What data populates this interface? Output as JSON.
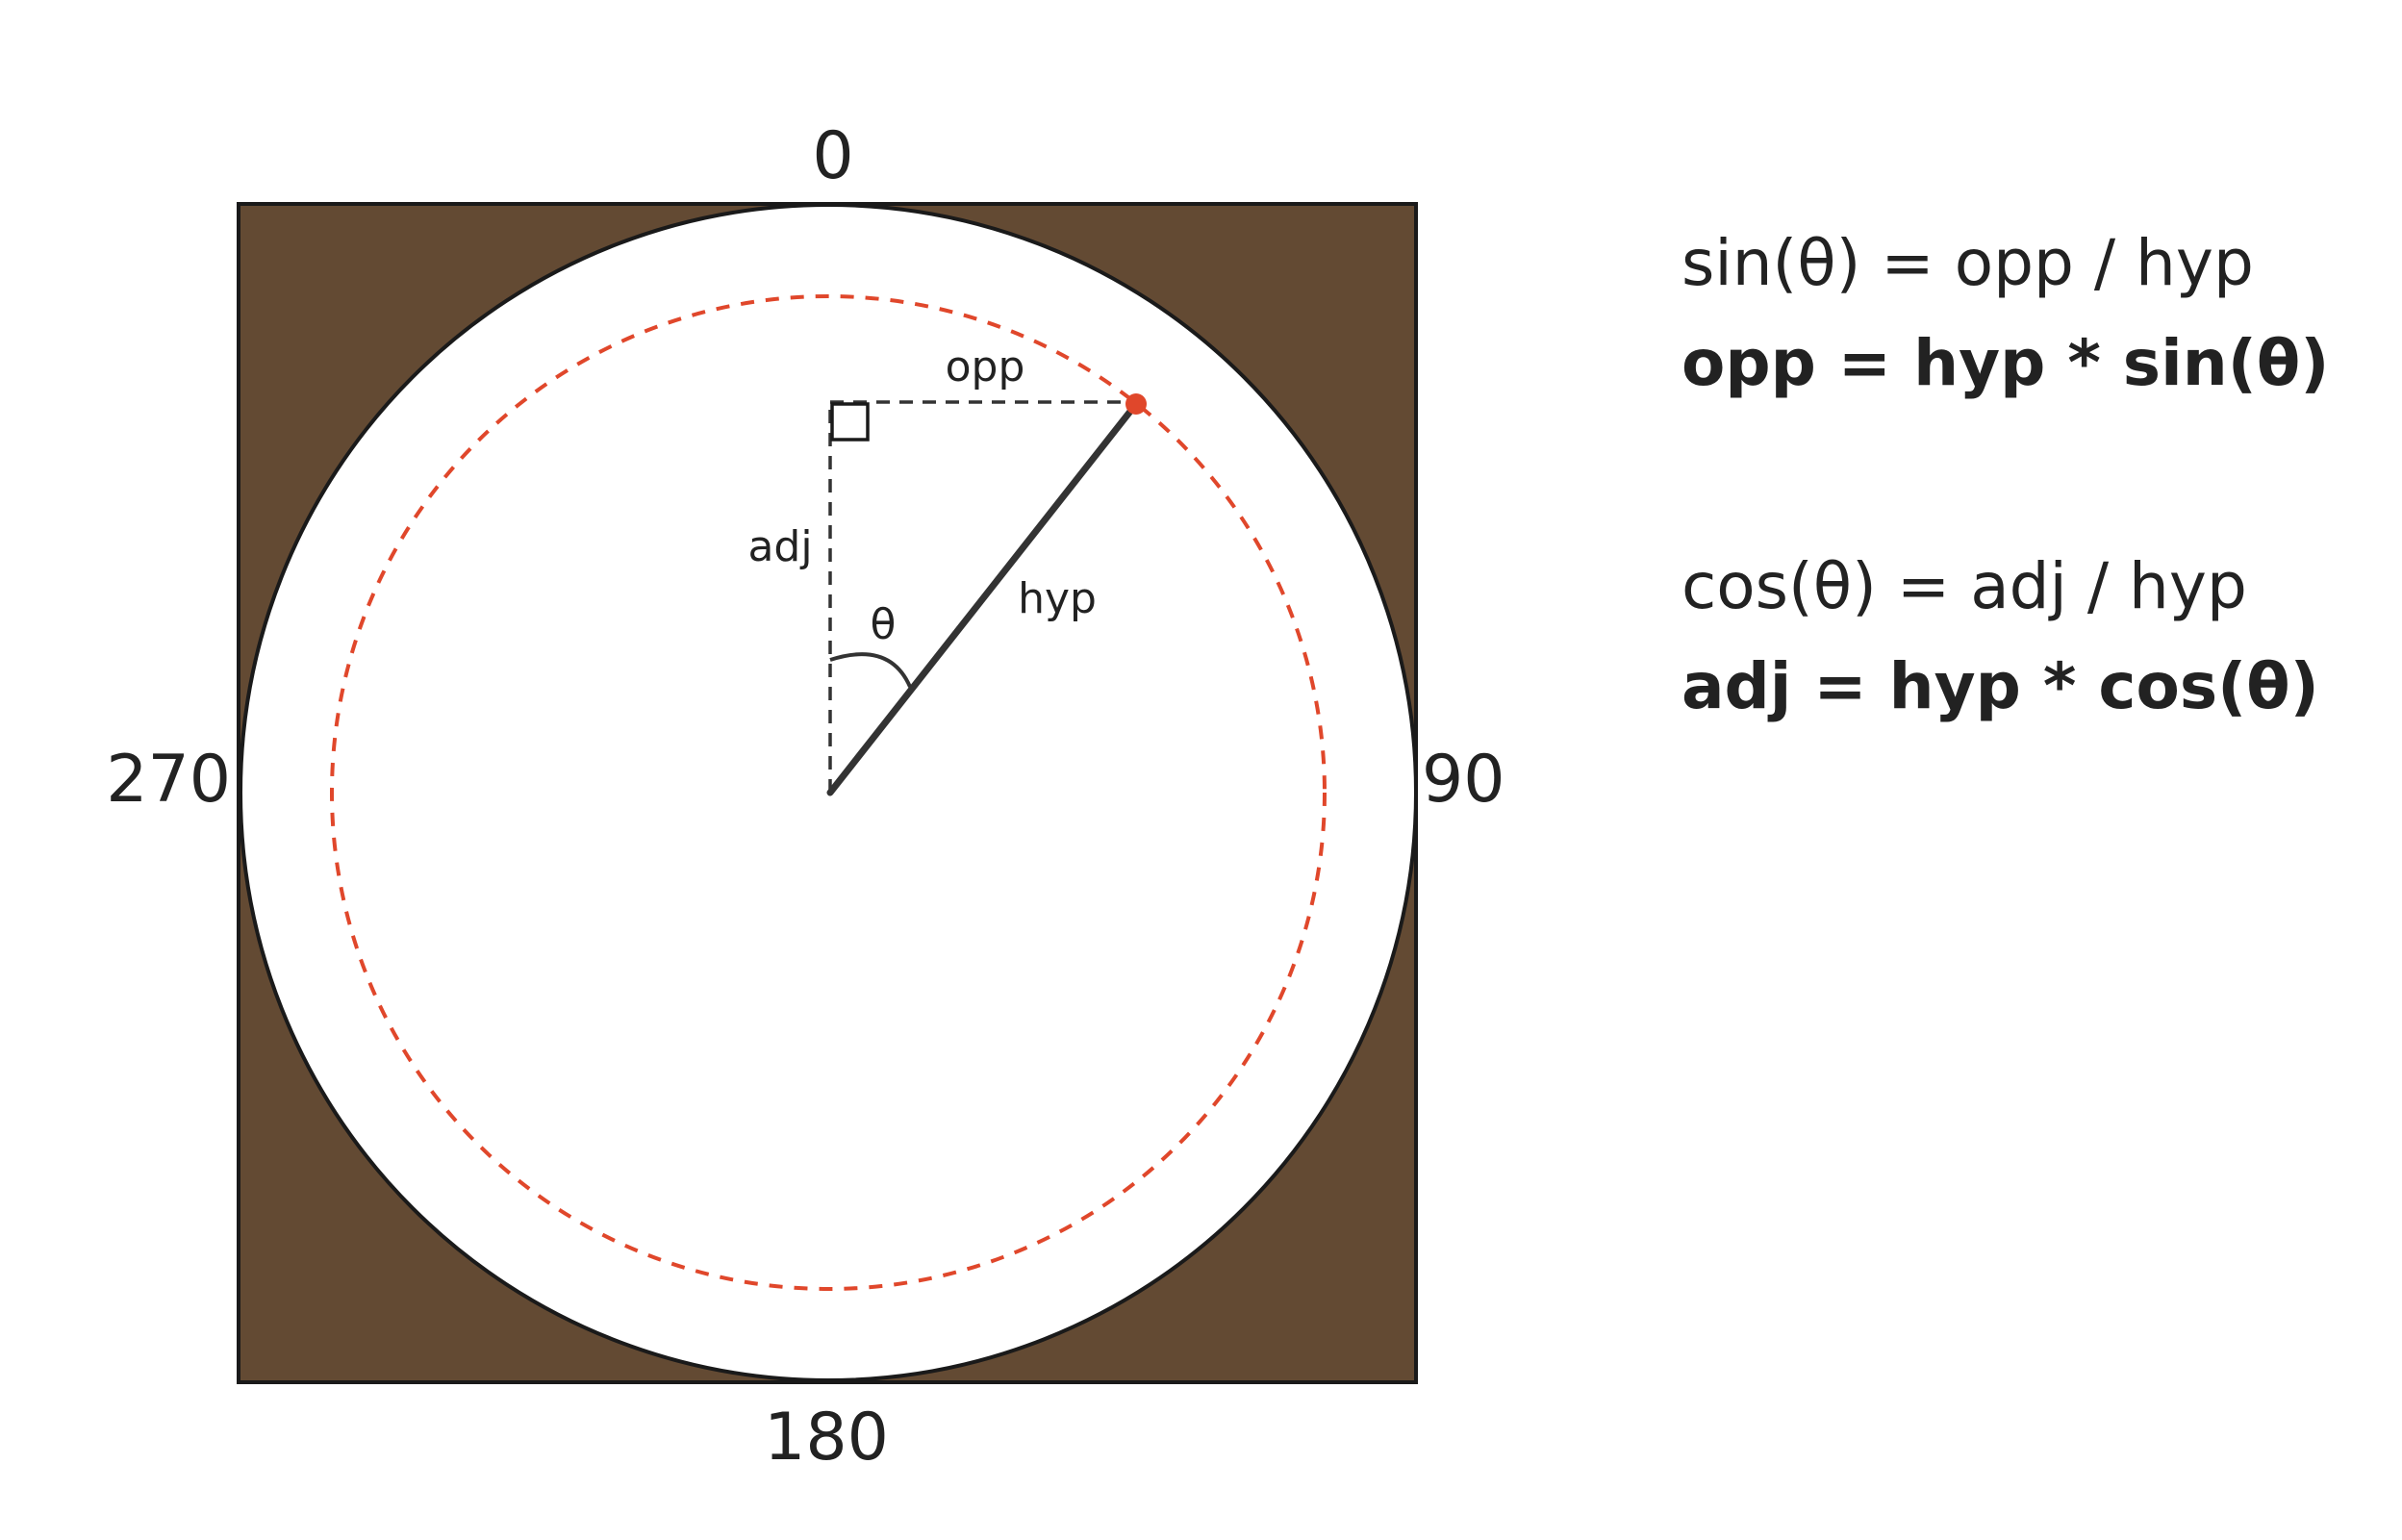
{
  "colors": {
    "frame_fill": "#634a33",
    "frame_stroke": "#1a1a1a",
    "circle_fill": "#ffffff",
    "orbit_dashed": "#e0472b",
    "point": "#e0472b",
    "line": "#333333",
    "text": "#222222"
  },
  "icons": {
    "right_angle": "square-marker-icon",
    "point": "red-dot-icon"
  },
  "angles": {
    "top": "0",
    "right": "90",
    "bottom": "180",
    "left": "270"
  },
  "triangle": {
    "theta_label": "θ",
    "opp_label": "opp",
    "adj_label": "adj",
    "hyp_label": "hyp"
  },
  "formulas": {
    "sin_def": "sin(θ) = opp / hyp",
    "sin_solve": "opp = hyp * sin(θ)",
    "cos_def": "cos(θ) = adj / hyp",
    "cos_solve": "adj = hyp * cos(θ)"
  }
}
